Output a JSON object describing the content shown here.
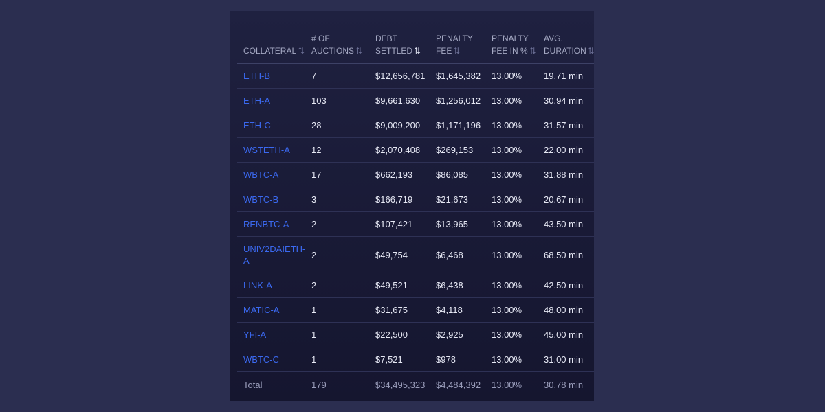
{
  "table": {
    "headers": [
      {
        "label": "COLLATERAL",
        "sort_active": false
      },
      {
        "label": "# OF AUCTIONS",
        "sort_active": false
      },
      {
        "label": "DEBT SETTLED",
        "sort_active": true
      },
      {
        "label": "PENALTY FEE",
        "sort_active": false
      },
      {
        "label": "PENALTY FEE IN %",
        "sort_active": false
      },
      {
        "label": "AVG. DURATION",
        "sort_active": false
      }
    ],
    "sort_icon": "⇅",
    "rows": [
      {
        "collateral": "ETH-B",
        "auctions": "7",
        "debt": "$12,656,781",
        "fee": "$1,645,382",
        "fee_pct": "13.00%",
        "duration": "19.71 min"
      },
      {
        "collateral": "ETH-A",
        "auctions": "103",
        "debt": "$9,661,630",
        "fee": "$1,256,012",
        "fee_pct": "13.00%",
        "duration": "30.94 min"
      },
      {
        "collateral": "ETH-C",
        "auctions": "28",
        "debt": "$9,009,200",
        "fee": "$1,171,196",
        "fee_pct": "13.00%",
        "duration": "31.57 min"
      },
      {
        "collateral": "WSTETH-A",
        "auctions": "12",
        "debt": "$2,070,408",
        "fee": "$269,153",
        "fee_pct": "13.00%",
        "duration": "22.00 min"
      },
      {
        "collateral": "WBTC-A",
        "auctions": "17",
        "debt": "$662,193",
        "fee": "$86,085",
        "fee_pct": "13.00%",
        "duration": "31.88 min"
      },
      {
        "collateral": "WBTC-B",
        "auctions": "3",
        "debt": "$166,719",
        "fee": "$21,673",
        "fee_pct": "13.00%",
        "duration": "20.67 min"
      },
      {
        "collateral": "RENBTC-A",
        "auctions": "2",
        "debt": "$107,421",
        "fee": "$13,965",
        "fee_pct": "13.00%",
        "duration": "43.50 min"
      },
      {
        "collateral": "UNIV2DAIETH-A",
        "auctions": "2",
        "debt": "$49,754",
        "fee": "$6,468",
        "fee_pct": "13.00%",
        "duration": "68.50 min"
      },
      {
        "collateral": "LINK-A",
        "auctions": "2",
        "debt": "$49,521",
        "fee": "$6,438",
        "fee_pct": "13.00%",
        "duration": "42.50 min"
      },
      {
        "collateral": "MATIC-A",
        "auctions": "1",
        "debt": "$31,675",
        "fee": "$4,118",
        "fee_pct": "13.00%",
        "duration": "48.00 min"
      },
      {
        "collateral": "YFI-A",
        "auctions": "1",
        "debt": "$22,500",
        "fee": "$2,925",
        "fee_pct": "13.00%",
        "duration": "45.00 min"
      },
      {
        "collateral": "WBTC-C",
        "auctions": "1",
        "debt": "$7,521",
        "fee": "$978",
        "fee_pct": "13.00%",
        "duration": "31.00 min"
      }
    ],
    "total": {
      "label": "Total",
      "auctions": "179",
      "debt": "$34,495,323",
      "fee": "$4,484,392",
      "fee_pct": "13.00%",
      "duration": "30.78 min"
    }
  },
  "colors": {
    "background": "#2b2e50",
    "panel": "#1b1c39",
    "link": "#3b69f0",
    "text": "#e6e8f4",
    "muted": "#9a9dbb"
  }
}
